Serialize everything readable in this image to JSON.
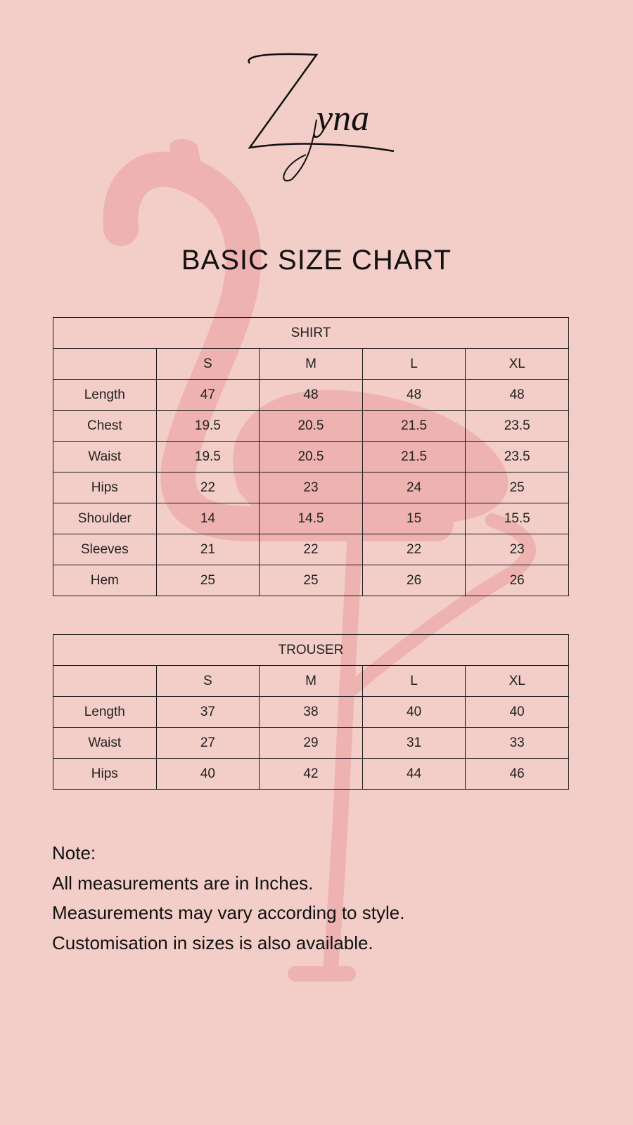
{
  "brand": {
    "logo_text": "Zyna"
  },
  "colors": {
    "background": "#f3cdc7",
    "flamingo": "#eeb2b0",
    "text": "#111111"
  },
  "title": "BASIC SIZE CHART",
  "shirt": {
    "heading": "SHIRT",
    "sizes": [
      "S",
      "M",
      "L",
      "XL"
    ],
    "rows": [
      {
        "label": "Length",
        "values": [
          "47",
          "48",
          "48",
          "48"
        ]
      },
      {
        "label": "Chest",
        "values": [
          "19.5",
          "20.5",
          "21.5",
          "23.5"
        ]
      },
      {
        "label": "Waist",
        "values": [
          "19.5",
          "20.5",
          "21.5",
          "23.5"
        ]
      },
      {
        "label": "Hips",
        "values": [
          "22",
          "23",
          "24",
          "25"
        ]
      },
      {
        "label": "Shoulder",
        "values": [
          "14",
          "14.5",
          "15",
          "15.5"
        ]
      },
      {
        "label": "Sleeves",
        "values": [
          "21",
          "22",
          "22",
          "23"
        ]
      },
      {
        "label": "Hem",
        "values": [
          "25",
          "25",
          "26",
          "26"
        ]
      }
    ]
  },
  "trouser": {
    "heading": "TROUSER",
    "sizes": [
      "S",
      "M",
      "L",
      "XL"
    ],
    "rows": [
      {
        "label": "Length",
        "values": [
          "37",
          "38",
          "40",
          "40"
        ]
      },
      {
        "label": "Waist",
        "values": [
          "27",
          "29",
          "31",
          "33"
        ]
      },
      {
        "label": "Hips",
        "values": [
          "40",
          "42",
          "44",
          "46"
        ]
      }
    ]
  },
  "notes": [
    "Note:",
    "All measurements are in Inches.",
    "Measurements may vary according to style.",
    "Customisation in sizes is also available."
  ]
}
